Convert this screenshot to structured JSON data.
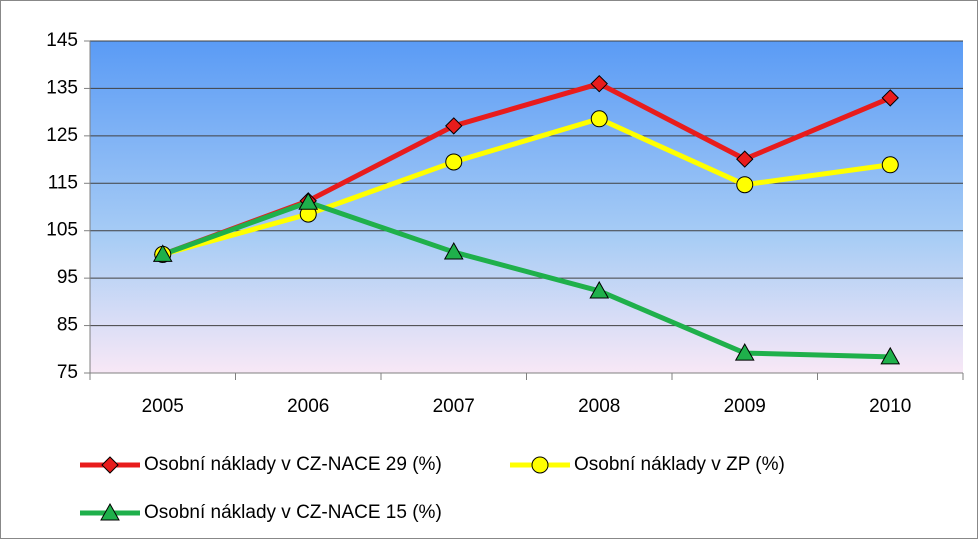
{
  "chart_data": {
    "type": "line",
    "categories": [
      "2005",
      "2006",
      "2007",
      "2008",
      "2009",
      "2010"
    ],
    "series": [
      {
        "name": "Osobní náklady v CZ-NACE 29 (%)",
        "color": "#e81c1c",
        "marker": "diamond",
        "values": [
          100,
          111.3,
          127.1,
          136,
          120.1,
          133
        ]
      },
      {
        "name": "Osobní náklady v ZP (%)",
        "color": "#ffff00",
        "marker": "circle",
        "values": [
          100,
          108.5,
          119.5,
          128.6,
          114.7,
          118.9
        ]
      },
      {
        "name": "Osobní náklady v CZ-NACE 15 (%)",
        "color": "#1fb04b",
        "marker": "triangle",
        "values": [
          100,
          111,
          100.5,
          92.3,
          79.2,
          78.4
        ]
      }
    ],
    "ylim": [
      75,
      145
    ],
    "yticks": [
      75,
      85,
      95,
      105,
      115,
      125,
      135,
      145
    ],
    "grid": true,
    "legend": "bottom"
  }
}
